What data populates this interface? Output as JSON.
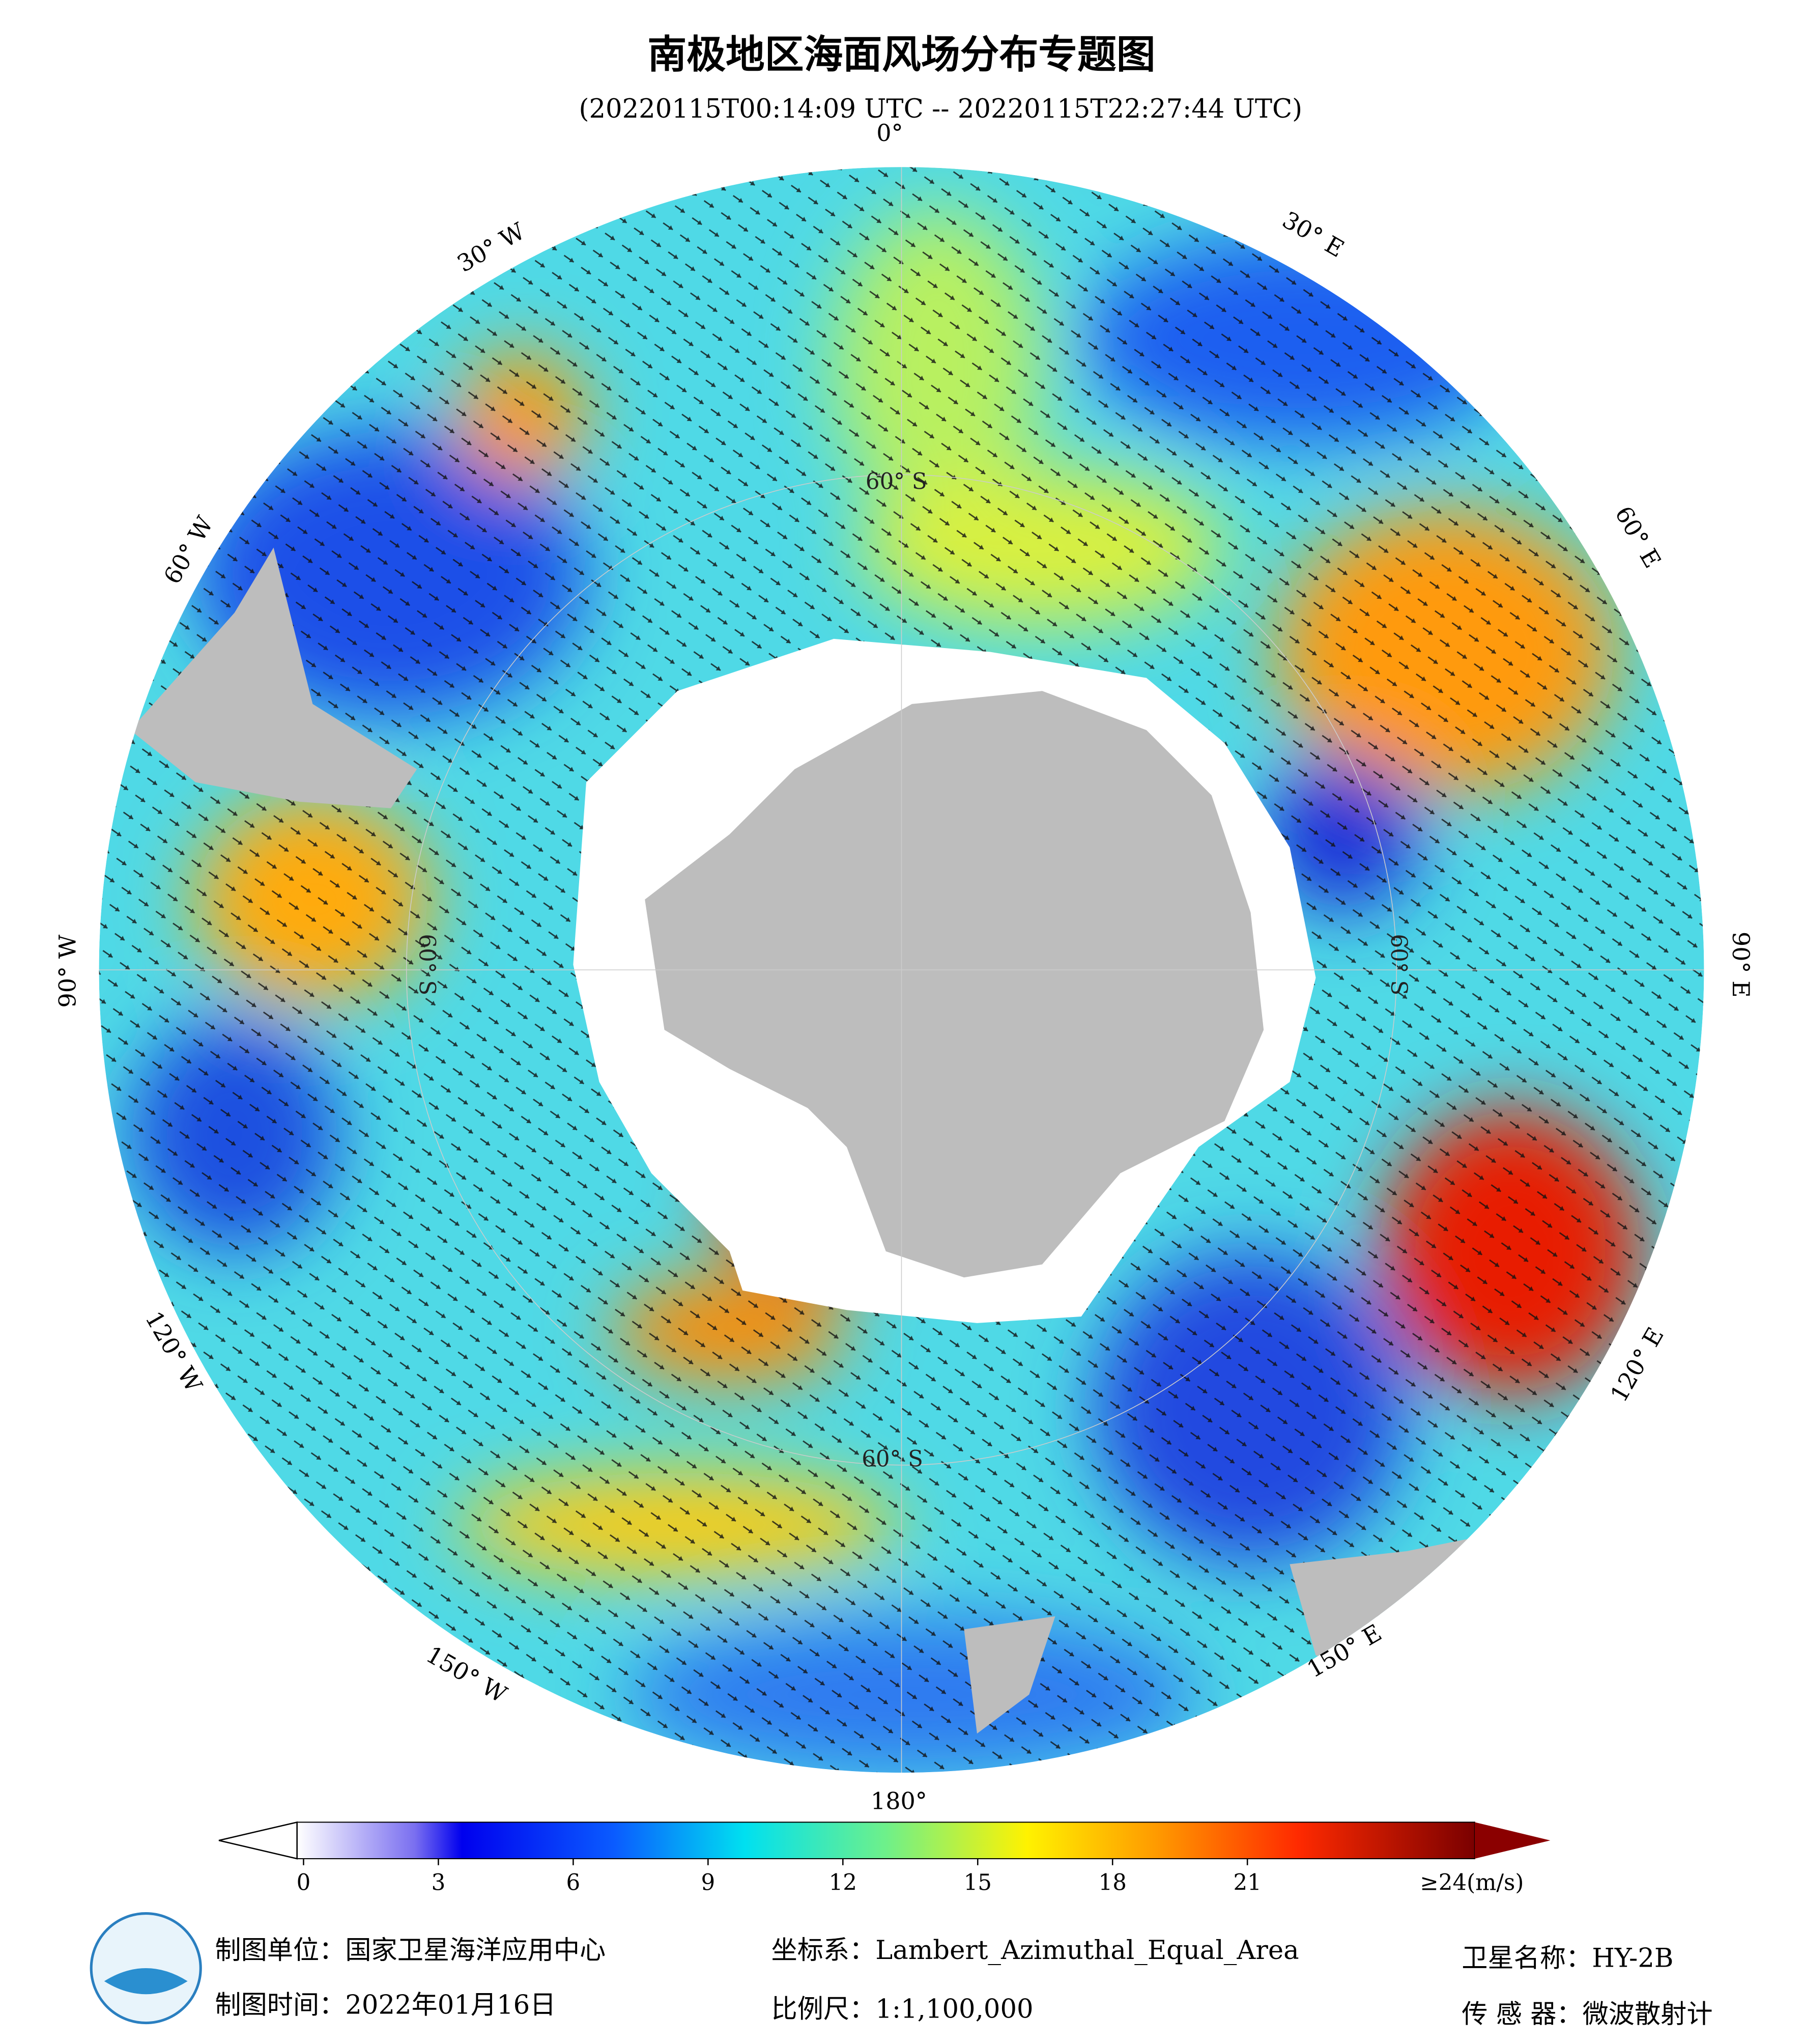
{
  "header": {
    "title": "南极地区海面风场分布专题图",
    "subtitle": "(20220115T00:14:09 UTC -- 20220115T22:27:44 UTC)"
  },
  "map": {
    "lon_labels": [
      "0°",
      "30° E",
      "60° E",
      "90° E",
      "120° E",
      "150° E",
      "180°",
      "150° W",
      "120° W",
      "90° W",
      "60° W",
      "30° W"
    ],
    "lat_labels": [
      "60° S",
      "60° S",
      "60° S",
      "60° S"
    ]
  },
  "colorbar": {
    "ticks": [
      0,
      3,
      6,
      9,
      12,
      15,
      18,
      21
    ],
    "max_label": "≥24(m/s)"
  },
  "footer": {
    "unit": "制图单位：国家卫星海洋应用中心",
    "date": "制图时间：2022年01月16日",
    "crs": "坐标系：Lambert_Azimuthal_Equal_Area",
    "scale": "比例尺：1:1,100,000",
    "satellite": "卫星名称：HY-2B",
    "sensor": "传 感 器：微波散射计"
  }
}
